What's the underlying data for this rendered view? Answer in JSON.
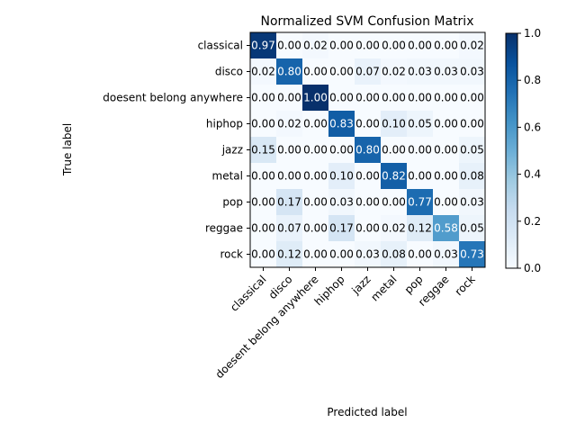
{
  "chart_data": {
    "type": "heatmap",
    "title": "Normalized SVM Confusion Matrix",
    "xlabel": "Predicted label",
    "ylabel": "True label",
    "x_categories": [
      "classical",
      "disco",
      "doesent belong anywhere",
      "hiphop",
      "jazz",
      "metal",
      "pop",
      "reggae",
      "rock"
    ],
    "y_categories": [
      "classical",
      "disco",
      "doesent belong anywhere",
      "hiphop",
      "jazz",
      "metal",
      "pop",
      "reggae",
      "rock"
    ],
    "values": [
      [
        0.97,
        0.0,
        0.02,
        0.0,
        0.0,
        0.0,
        0.0,
        0.0,
        0.02
      ],
      [
        0.02,
        0.8,
        0.0,
        0.0,
        0.07,
        0.02,
        0.03,
        0.03,
        0.03
      ],
      [
        0.0,
        0.0,
        1.0,
        0.0,
        0.0,
        0.0,
        0.0,
        0.0,
        0.0
      ],
      [
        0.0,
        0.02,
        0.0,
        0.83,
        0.0,
        0.1,
        0.05,
        0.0,
        0.0
      ],
      [
        0.15,
        0.0,
        0.0,
        0.0,
        0.8,
        0.0,
        0.0,
        0.0,
        0.05
      ],
      [
        0.0,
        0.0,
        0.0,
        0.1,
        0.0,
        0.82,
        0.0,
        0.0,
        0.08
      ],
      [
        0.0,
        0.17,
        0.0,
        0.03,
        0.0,
        0.0,
        0.77,
        0.0,
        0.03
      ],
      [
        0.0,
        0.07,
        0.0,
        0.17,
        0.0,
        0.02,
        0.12,
        0.58,
        0.05
      ],
      [
        0.0,
        0.12,
        0.0,
        0.0,
        0.03,
        0.08,
        0.0,
        0.03,
        0.73
      ]
    ],
    "value_format": "2-decimal",
    "colormap": "Blues",
    "colorbar": {
      "range": [
        0.0,
        1.0
      ],
      "ticks": [
        "0.0",
        "0.2",
        "0.4",
        "0.6",
        "0.8",
        "1.0"
      ]
    },
    "text_color_dark": "#000000",
    "text_color_light": "#ffffff"
  }
}
